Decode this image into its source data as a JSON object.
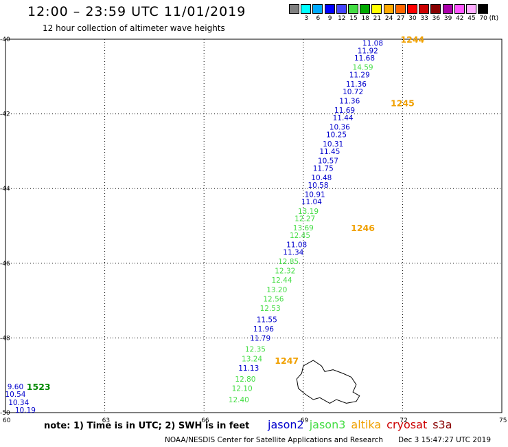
{
  "header": {
    "title": "12:00 – 23:59 UTC 11/01/2019",
    "subtitle": "12 hour collection of altimeter wave heights"
  },
  "legend": {
    "unit": "(ft)",
    "colors": [
      "#808080",
      "#00ffff",
      "#00aaff",
      "#0000ff",
      "#4444ff",
      "#44dd44",
      "#00aa00",
      "#ffff00",
      "#ffaa00",
      "#ff6600",
      "#ff0000",
      "#cc0000",
      "#880000",
      "#aa00aa",
      "#ff55ff",
      "#ffaaff",
      "#000000"
    ],
    "labels": [
      "3",
      "6",
      "9",
      "12",
      "15",
      "18",
      "21",
      "24",
      "27",
      "30",
      "33",
      "36",
      "39",
      "42",
      "45",
      "70"
    ]
  },
  "axes": {
    "lon_ticks": [
      "60",
      "63",
      "66",
      "69",
      "72",
      "75"
    ],
    "lat_ticks": [
      "-40",
      "-42",
      "-44",
      "-46",
      "-48",
      "-50"
    ]
  },
  "chart_data": {
    "type": "scatter",
    "xlim": [
      60,
      75
    ],
    "ylim": [
      -50,
      -40
    ],
    "observations": [
      {
        "lon": 71.1,
        "lat": -40.1,
        "v": "11.08",
        "sat": "jason2"
      },
      {
        "lon": 70.95,
        "lat": -40.3,
        "v": "11.92",
        "sat": "jason2"
      },
      {
        "lon": 70.85,
        "lat": -40.5,
        "v": "11.68",
        "sat": "jason2"
      },
      {
        "lon": 70.8,
        "lat": -40.75,
        "v": "14.59",
        "sat": "jason3"
      },
      {
        "lon": 70.7,
        "lat": -40.95,
        "v": "11.29",
        "sat": "jason2"
      },
      {
        "lon": 70.6,
        "lat": -41.2,
        "v": "11.36",
        "sat": "jason2"
      },
      {
        "lon": 70.5,
        "lat": -41.4,
        "v": "10.72",
        "sat": "jason2"
      },
      {
        "lon": 70.4,
        "lat": -41.65,
        "v": "11.36",
        "sat": "jason2"
      },
      {
        "lon": 70.25,
        "lat": -41.9,
        "v": "11.69",
        "sat": "jason2"
      },
      {
        "lon": 70.2,
        "lat": -42.1,
        "v": "11.44",
        "sat": "jason2"
      },
      {
        "lon": 70.1,
        "lat": -42.35,
        "v": "10.36",
        "sat": "jason2"
      },
      {
        "lon": 70.0,
        "lat": -42.55,
        "v": "10.25",
        "sat": "jason2"
      },
      {
        "lon": 69.9,
        "lat": -42.8,
        "v": "10.31",
        "sat": "jason2"
      },
      {
        "lon": 69.8,
        "lat": -43.0,
        "v": "11.45",
        "sat": "jason2"
      },
      {
        "lon": 69.75,
        "lat": -43.25,
        "v": "10.57",
        "sat": "jason2"
      },
      {
        "lon": 69.6,
        "lat": -43.45,
        "v": "11.75",
        "sat": "jason2"
      },
      {
        "lon": 69.55,
        "lat": -43.7,
        "v": "10.48",
        "sat": "jason2"
      },
      {
        "lon": 69.45,
        "lat": -43.9,
        "v": "10.58",
        "sat": "jason2"
      },
      {
        "lon": 69.35,
        "lat": -44.15,
        "v": "10.91",
        "sat": "jason2"
      },
      {
        "lon": 69.25,
        "lat": -44.35,
        "v": "11.04",
        "sat": "jason2"
      },
      {
        "lon": 69.15,
        "lat": -44.6,
        "v": "13.19",
        "sat": "jason3"
      },
      {
        "lon": 69.05,
        "lat": -44.8,
        "v": "12.27",
        "sat": "jason3"
      },
      {
        "lon": 69.0,
        "lat": -45.05,
        "v": "13.69",
        "sat": "jason3"
      },
      {
        "lon": 68.9,
        "lat": -45.25,
        "v": "12.45",
        "sat": "jason3"
      },
      {
        "lon": 68.8,
        "lat": -45.5,
        "v": "11.08",
        "sat": "jason2"
      },
      {
        "lon": 68.7,
        "lat": -45.7,
        "v": "11.34",
        "sat": "jason2"
      },
      {
        "lon": 68.55,
        "lat": -45.95,
        "v": "12.85",
        "sat": "jason3"
      },
      {
        "lon": 68.45,
        "lat": -46.2,
        "v": "12.32",
        "sat": "jason3"
      },
      {
        "lon": 68.35,
        "lat": -46.45,
        "v": "12.44",
        "sat": "jason3"
      },
      {
        "lon": 68.2,
        "lat": -46.7,
        "v": "13.20",
        "sat": "jason3"
      },
      {
        "lon": 68.1,
        "lat": -46.95,
        "v": "12.56",
        "sat": "jason3"
      },
      {
        "lon": 68.0,
        "lat": -47.2,
        "v": "12.53",
        "sat": "jason3"
      },
      {
        "lon": 67.9,
        "lat": -47.5,
        "v": "11.55",
        "sat": "jason2"
      },
      {
        "lon": 67.8,
        "lat": -47.75,
        "v": "11.96",
        "sat": "jason2"
      },
      {
        "lon": 67.7,
        "lat": -48.0,
        "v": "11.79",
        "sat": "jason2"
      },
      {
        "lon": 67.55,
        "lat": -48.3,
        "v": "12.35",
        "sat": "jason3"
      },
      {
        "lon": 67.45,
        "lat": -48.55,
        "v": "13.24",
        "sat": "jason3"
      },
      {
        "lon": 67.35,
        "lat": -48.8,
        "v": "11.13",
        "sat": "jason2"
      },
      {
        "lon": 67.25,
        "lat": -49.1,
        "v": "12.80",
        "sat": "jason3"
      },
      {
        "lon": 67.15,
        "lat": -49.35,
        "v": "12.10",
        "sat": "jason3"
      },
      {
        "lon": 67.05,
        "lat": -49.65,
        "v": "12.40",
        "sat": "jason3"
      },
      {
        "lon": 60.3,
        "lat": -49.3,
        "v": "9.60",
        "sat": "jason2"
      },
      {
        "lon": 60.3,
        "lat": -49.5,
        "v": "10.54",
        "sat": "jason2"
      },
      {
        "lon": 60.4,
        "lat": -49.72,
        "v": "10.34",
        "sat": "jason2"
      },
      {
        "lon": 60.6,
        "lat": -49.93,
        "v": "10.19",
        "sat": "jason2"
      }
    ],
    "time_labels": [
      {
        "lon": 72.3,
        "lat": -40.0,
        "t": "1244",
        "sat": "altika"
      },
      {
        "lon": 72.0,
        "lat": -41.7,
        "t": "1245",
        "sat": "altika"
      },
      {
        "lon": 70.8,
        "lat": -45.05,
        "t": "1246",
        "sat": "altika"
      },
      {
        "lon": 68.5,
        "lat": -48.6,
        "t": "1247",
        "sat": "altika"
      },
      {
        "lon": 61.0,
        "lat": -49.3,
        "t": "1523",
        "sat": "jason3"
      }
    ]
  },
  "sat_colors": {
    "jason2": "#0000cc",
    "jason3": "#44dd44",
    "altika": "#f0a000",
    "cryosat": "#cc0000",
    "s3a": "#880000"
  },
  "sat_text_colors": {
    "jason2": "#0000cc",
    "jason3": "#44dd44",
    "altika": "#f0a000",
    "jason3_time": "#008800"
  },
  "footer": {
    "note": "note: 1) Time is in UTC; 2) SWH is in feet",
    "satellites": [
      "jason2",
      "jason3",
      "altika",
      "cryosat",
      "s3a"
    ],
    "credit": "NOAA/NESDIS Center for Satellite Applications and Research",
    "timestamp": "Dec  3 15:47:27 UTC 2019"
  }
}
